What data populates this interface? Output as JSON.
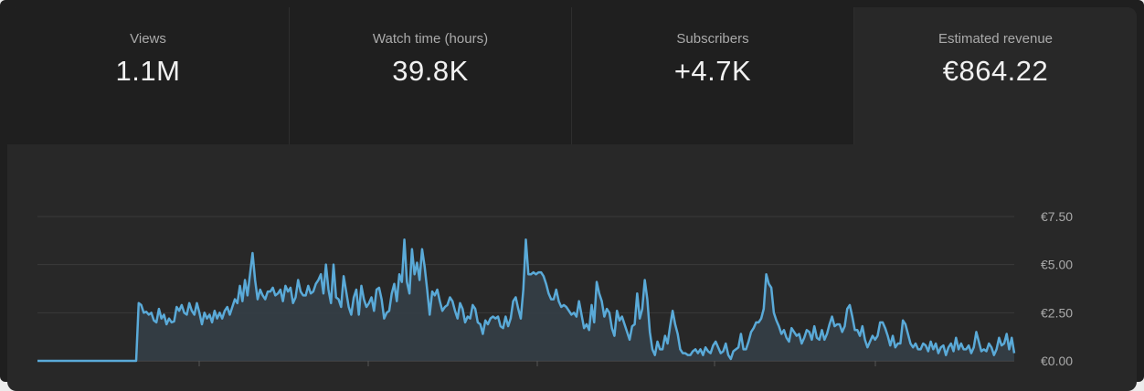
{
  "metrics": [
    {
      "label": "Views",
      "value": "1.1M"
    },
    {
      "label": "Watch time (hours)",
      "value": "39.8K"
    },
    {
      "label": "Subscribers",
      "value": "+4.7K"
    },
    {
      "label": "Estimated revenue",
      "value": "€864.22"
    }
  ],
  "selected_metric": "Estimated revenue",
  "colors": {
    "line": "#5aaad8",
    "fill": "#354048",
    "grid": "#3a3a3a",
    "background": "#282828"
  },
  "chart_data": {
    "type": "area",
    "title": "",
    "xlabel": "",
    "ylabel": "",
    "ylim": [
      0,
      7.5
    ],
    "y_ticks": [
      0,
      2.5,
      5,
      7.5
    ],
    "y_tick_labels": [
      "€0.00",
      "€2.50",
      "€5.00",
      "€7.50"
    ],
    "y_axis_position": "right",
    "grid": true,
    "values": [
      0,
      0,
      0,
      0,
      0,
      0,
      0,
      0,
      0,
      0,
      0,
      0,
      0,
      0,
      0,
      0,
      0,
      0,
      0,
      0,
      0,
      0,
      0,
      0,
      0,
      0,
      0,
      0,
      0,
      0,
      0,
      0,
      0,
      0,
      0,
      0,
      0,
      0,
      0,
      0,
      3.0,
      2.9,
      2.5,
      2.55,
      2.4,
      2.5,
      2.1,
      2.0,
      2.7,
      2.2,
      2.4,
      1.9,
      2.2,
      2.0,
      2.05,
      2.8,
      2.6,
      2.9,
      2.5,
      2.4,
      3.0,
      2.6,
      2.4,
      3.0,
      2.5,
      1.9,
      2.5,
      2.2,
      2.4,
      2.0,
      2.6,
      2.2,
      2.5,
      2.2,
      2.6,
      2.8,
      2.4,
      2.8,
      3.2,
      3.0,
      3.9,
      3.1,
      4.2,
      3.4,
      4.5,
      5.6,
      4.2,
      3.2,
      3.7,
      3.4,
      3.2,
      3.6,
      3.6,
      3.8,
      3.4,
      3.5,
      3.7,
      3.1,
      3.9,
      3.6,
      3.8,
      3.0,
      3.3,
      4.2,
      3.6,
      3.4,
      3.4,
      3.9,
      3.5,
      3.6,
      4.0,
      4.2,
      4.5,
      3.5,
      5.0,
      3.7,
      3.0,
      5.0,
      3.3,
      3.2,
      2.8,
      4.4,
      3.6,
      2.8,
      2.4,
      3.3,
      3.7,
      2.4,
      3.9,
      3.2,
      2.8,
      3.0,
      3.3,
      2.6,
      3.7,
      3.8,
      3.2,
      2.2,
      2.5,
      2.6,
      3.5,
      4.0,
      3.1,
      4.5,
      4.1,
      6.3,
      4.1,
      3.5,
      5.8,
      4.5,
      5.1,
      4.2,
      5.8,
      4.9,
      3.7,
      2.4,
      3.6,
      3.4,
      3.7,
      3.1,
      2.6,
      2.8,
      2.9,
      3.3,
      3.1,
      2.6,
      2.2,
      3.0,
      2.7,
      2.0,
      2.3,
      2.2,
      2.9,
      2.7,
      2.0,
      1.9,
      1.4,
      2.1,
      1.9,
      2.2,
      2.3,
      2.2,
      2.3,
      1.8,
      1.7,
      2.3,
      1.8,
      2.2,
      3.1,
      3.3,
      2.7,
      2.2,
      3.7,
      6.3,
      4.5,
      4.5,
      4.6,
      4.5,
      4.6,
      4.6,
      4.4,
      4.0,
      3.5,
      3.2,
      3.2,
      3.7,
      3.1,
      2.8,
      2.9,
      2.8,
      2.6,
      2.4,
      2.5,
      2.3,
      3.1,
      2.4,
      1.7,
      1.9,
      1.6,
      2.9,
      2.0,
      4.1,
      3.5,
      3.1,
      2.3,
      2.7,
      2.5,
      1.7,
      1.3,
      2.6,
      2.1,
      2.3,
      1.9,
      1.5,
      1.1,
      1.8,
      1.9,
      3.5,
      2.2,
      2.7,
      4.2,
      3.2,
      1.5,
      0.6,
      0.3,
      1.0,
      0.6,
      0.6,
      1.3,
      0.9,
      1.8,
      2.6,
      1.9,
      1.4,
      0.6,
      0.4,
      0.4,
      0.3,
      0.3,
      0.5,
      0.6,
      0.4,
      0.6,
      0.3,
      0.7,
      0.5,
      0.4,
      0.8,
      1.0,
      0.7,
      0.4,
      0.5,
      0.9,
      0.3,
      0.1,
      0.5,
      0.6,
      0.7,
      1.4,
      0.6,
      0.6,
      1.0,
      1.5,
      1.7,
      2.0,
      2.0,
      2.2,
      2.7,
      4.5,
      4.0,
      3.8,
      2.5,
      2.1,
      1.8,
      1.4,
      1.6,
      1.2,
      1.0,
      1.7,
      1.5,
      1.3,
      1.4,
      0.9,
      1.2,
      1.6,
      1.5,
      1.1,
      1.8,
      1.2,
      1.1,
      1.6,
      1.1,
      1.4,
      1.9,
      2.3,
      1.8,
      1.9,
      1.9,
      1.5,
      1.8,
      2.7,
      2.9,
      2.3,
      1.6,
      1.6,
      1.3,
      1.8,
      1.1,
      0.7,
      1.0,
      1.3,
      1.1,
      1.3,
      2.0,
      2.0,
      1.7,
      1.3,
      0.8,
      1.3,
      0.7,
      0.9,
      0.9,
      2.1,
      1.9,
      1.4,
      0.9,
      0.7,
      0.9,
      0.6,
      0.6,
      0.9,
      0.8,
      0.5,
      1.0,
      0.6,
      0.9,
      0.4,
      0.7,
      0.8,
      0.3,
      0.7,
      0.9,
      0.5,
      1.2,
      0.6,
      0.9,
      0.6,
      0.6,
      0.8,
      0.4,
      0.7,
      1.5,
      1.0,
      0.5,
      0.6,
      0.5,
      0.9,
      0.7,
      0.3,
      0.6,
      1.2,
      0.8,
      0.9,
      1.4,
      0.6,
      1.2,
      0.4
    ]
  }
}
